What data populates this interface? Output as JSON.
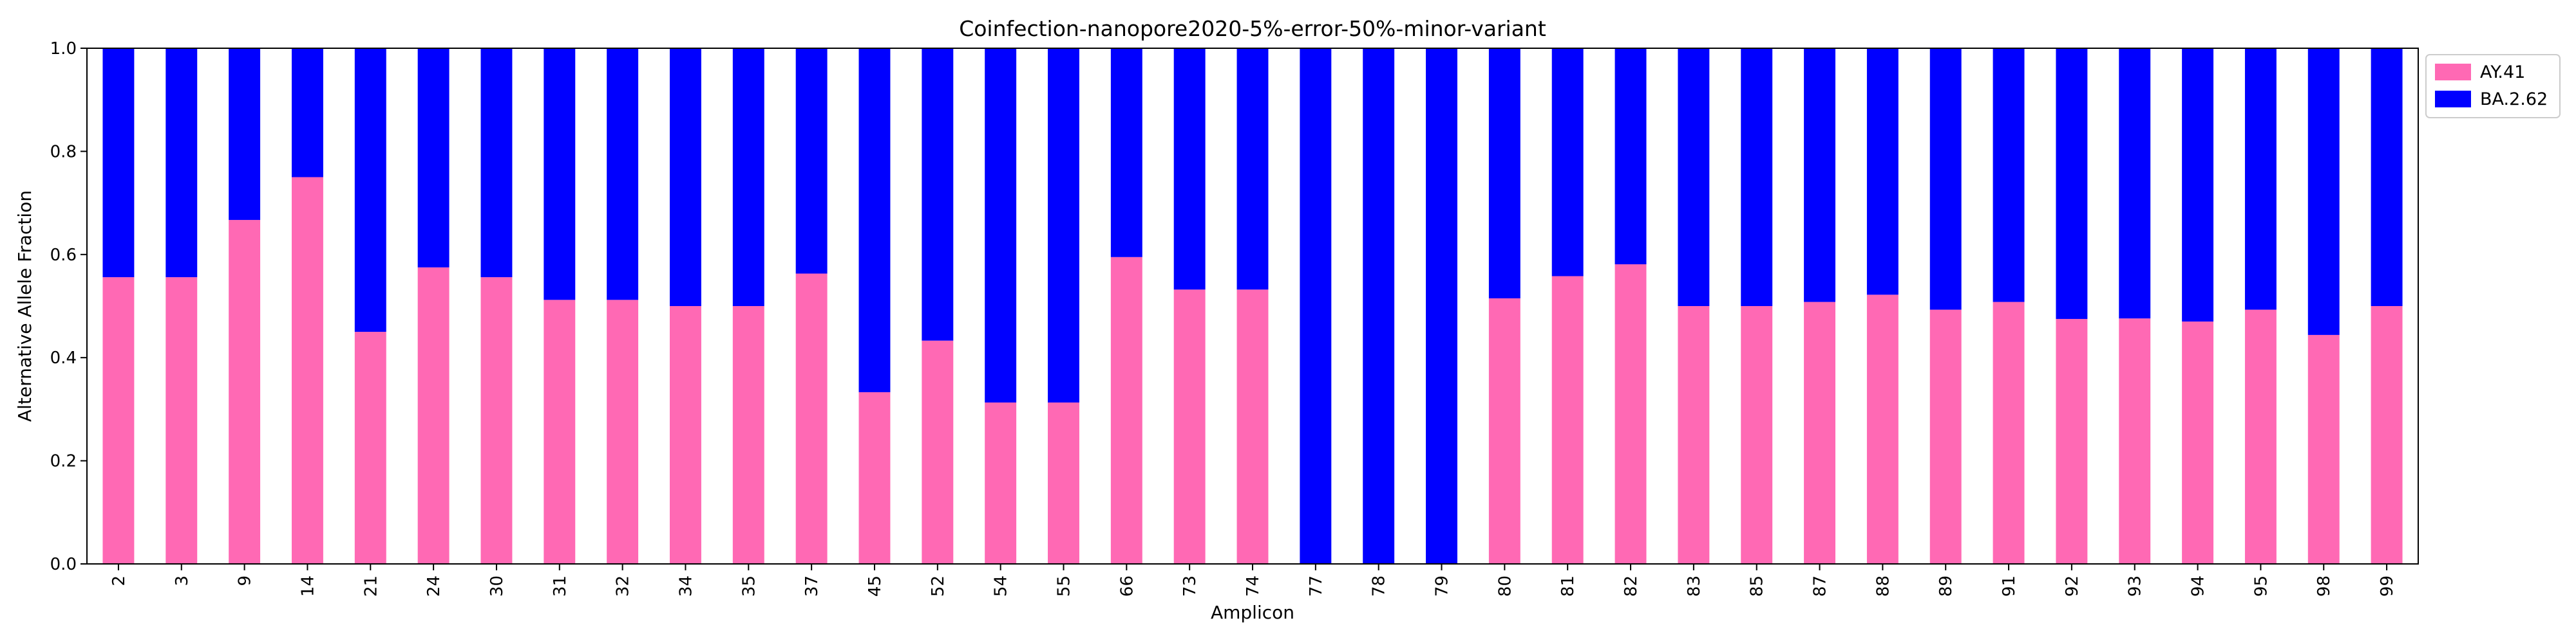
{
  "chart_data": {
    "type": "bar",
    "stacked": true,
    "title": "Coinfection-nanopore2020-5%-error-50%-minor-variant",
    "xlabel": "Amplicon",
    "ylabel": "Alternative Allele Fraction",
    "ylim": [
      0,
      1.0
    ],
    "yticks": [
      "0.0",
      "0.2",
      "0.4",
      "0.6",
      "0.8",
      "1.0"
    ],
    "legend_position": "outside-top-right",
    "grid": false,
    "categories": [
      "2",
      "3",
      "9",
      "14",
      "21",
      "24",
      "30",
      "31",
      "32",
      "34",
      "35",
      "37",
      "45",
      "52",
      "54",
      "55",
      "66",
      "73",
      "74",
      "77",
      "78",
      "79",
      "80",
      "81",
      "82",
      "83",
      "85",
      "87",
      "88",
      "89",
      "91",
      "92",
      "93",
      "94",
      "95",
      "98",
      "99"
    ],
    "series": [
      {
        "name": "AY.41",
        "color": "#ff69b4",
        "values": [
          0.556,
          0.556,
          0.667,
          0.75,
          0.45,
          0.575,
          0.556,
          0.512,
          0.512,
          0.5,
          0.5,
          0.563,
          0.333,
          0.433,
          0.313,
          0.313,
          0.595,
          0.532,
          0.532,
          0,
          0,
          0,
          0.515,
          0.558,
          0.581,
          0.5,
          0.5,
          0.508,
          0.522,
          0.493,
          0.508,
          0.475,
          0.476,
          0.47,
          0.493,
          0.444,
          0.5
        ]
      },
      {
        "name": "BA.2.62",
        "color": "#0000ff",
        "values": [
          0.444,
          0.444,
          0.333,
          0.25,
          0.55,
          0.425,
          0.444,
          0.488,
          0.488,
          0.5,
          0.5,
          0.437,
          0.667,
          0.567,
          0.687,
          0.687,
          0.405,
          0.468,
          0.468,
          1,
          1,
          1,
          0.485,
          0.442,
          0.419,
          0.5,
          0.5,
          0.492,
          0.478,
          0.507,
          0.492,
          0.525,
          0.524,
          0.53,
          0.507,
          0.556,
          0.5
        ]
      }
    ]
  }
}
